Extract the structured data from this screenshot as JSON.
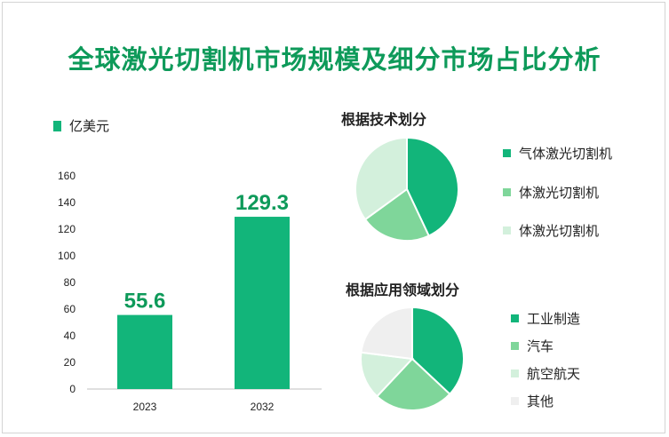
{
  "title": "全球激光切割机市场规模及细分市场占比分析",
  "colors": {
    "accent": "#0e9a5a",
    "bar": "#12b57a",
    "pie_dark": "#12b57a",
    "pie_mid": "#7fd69a",
    "pie_light": "#d3f0dc",
    "pie_gray": "#efefef"
  },
  "chart_data": [
    {
      "type": "bar",
      "legend": "亿美元",
      "categories": [
        "2023",
        "2032"
      ],
      "values": [
        55.6,
        129.3
      ],
      "value_labels": [
        "55.6",
        "129.3"
      ],
      "ylim": [
        0,
        160
      ],
      "yticks": [
        0,
        20,
        40,
        60,
        80,
        100,
        120,
        140,
        160
      ],
      "grid": false
    },
    {
      "type": "pie",
      "title": "根据技术划分",
      "labels": [
        "气体激光切割机",
        "体激光切割机",
        "体激光切割机"
      ],
      "values": [
        43,
        22,
        35
      ],
      "colors": [
        "#12b57a",
        "#7fd69a",
        "#d3f0dc"
      ]
    },
    {
      "type": "pie",
      "title": "根据应用领域划分",
      "labels": [
        "工业制造",
        "汽车",
        "航空航天",
        "其他"
      ],
      "values": [
        37,
        25,
        15,
        23
      ],
      "colors": [
        "#12b57a",
        "#7fd69a",
        "#d3f0dc",
        "#efefef"
      ]
    }
  ]
}
